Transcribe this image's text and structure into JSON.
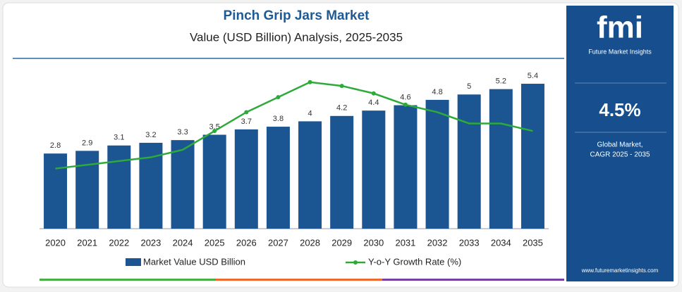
{
  "chart_data": {
    "type": "bar",
    "title": "Pinch Grip Jars Market",
    "subtitle": "Value (USD Billion) Analysis, 2025-2035",
    "categories": [
      "2020",
      "2021",
      "2022",
      "2023",
      "2024",
      "2025",
      "2026",
      "2027",
      "2028",
      "2029",
      "2030",
      "2031",
      "2032",
      "2033",
      "2034",
      "2035"
    ],
    "series": [
      {
        "name": "Market Value USD Billion",
        "color": "#1b5592",
        "values": [
          2.8,
          2.9,
          3.1,
          3.2,
          3.3,
          3.5,
          3.7,
          3.8,
          4.0,
          4.2,
          4.4,
          4.6,
          4.8,
          5.0,
          5.2,
          5.4
        ]
      },
      {
        "name": "Y-o-Y Growth Rate (%)",
        "color": "#2eaa3a",
        "axis": "y2",
        "values": [
          3.6,
          3.7,
          3.8,
          3.9,
          4.1,
          4.6,
          5.1,
          5.5,
          5.9,
          5.8,
          5.6,
          5.3,
          5.1,
          4.8,
          4.8,
          4.6
        ]
      }
    ],
    "ylim": [
      0,
      7
    ],
    "y2lim": [
      2,
      7
    ]
  },
  "panel": {
    "logo": "fmi",
    "brand": "Future Market Insights",
    "cagr": "4.5%",
    "caption_1": "Global Market,",
    "caption_2": "CAGR 2025 - 2035",
    "website": "www.futuremarketinsights.com"
  }
}
